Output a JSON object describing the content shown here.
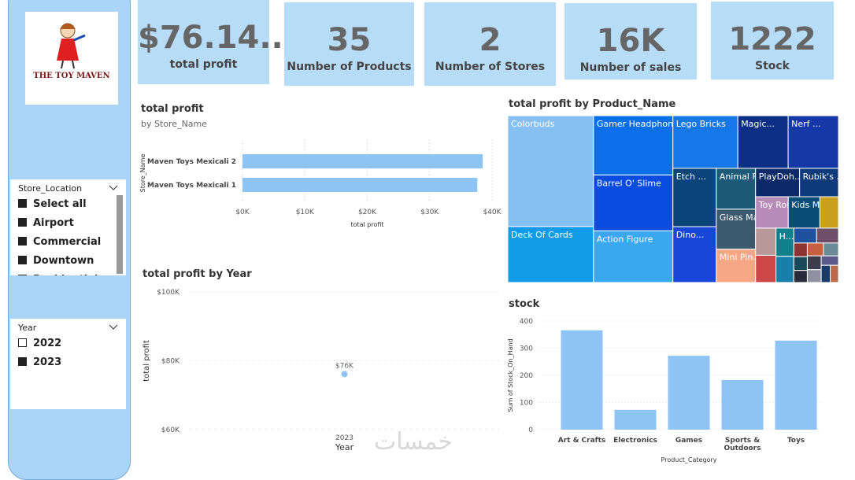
{
  "logo": {
    "text": "THE TOY MAVEN"
  },
  "cards": [
    {
      "value": "$76.14...",
      "label": "total profit"
    },
    {
      "value": "35",
      "label": "Number of Products"
    },
    {
      "value": "2",
      "label": "Number of Stores"
    },
    {
      "value": "16K",
      "label": "Number of sales"
    },
    {
      "value": "1222",
      "label": "Stock"
    }
  ],
  "slicers": [
    {
      "title": "Store_Location",
      "items": [
        {
          "label": "Select all",
          "checked": true
        },
        {
          "label": "Airport",
          "checked": true
        },
        {
          "label": "Commercial",
          "checked": true
        },
        {
          "label": "Downtown",
          "checked": true
        },
        {
          "label": "Residential",
          "checked": true
        }
      ]
    },
    {
      "title": "Year",
      "items": [
        {
          "label": "2022",
          "checked": false
        },
        {
          "label": "2023",
          "checked": true
        }
      ]
    }
  ],
  "watermark": "خمسات",
  "chart_data": [
    {
      "type": "bar",
      "orientation": "horizontal",
      "title": "total profit",
      "subtitle": "by Store_Name",
      "categories": [
        "Maven Toys Mexicali 2",
        "Maven Toys Mexicali 1"
      ],
      "values": [
        38500,
        37640
      ],
      "color": "#8dc4f4",
      "xlim": [
        0,
        40000
      ],
      "xticks": [
        {
          "value": 0,
          "label": "$0K"
        },
        {
          "value": 10000,
          "label": "$10K"
        },
        {
          "value": 20000,
          "label": "$20K"
        },
        {
          "value": 30000,
          "label": "$30K"
        },
        {
          "value": 40000,
          "label": "$40K"
        }
      ],
      "xlabel": "total profit",
      "ylabel": "Store_Name",
      "grid": true
    },
    {
      "type": "treemap",
      "title": "total profit by Product_Name",
      "categories": [
        "Colorbuds",
        "Deck Of Cards",
        "Gamer Headphones",
        "Barrel O' Slime",
        "Action Figure",
        "Lego Bricks",
        "Magic...",
        "Nerf ...",
        "Etch ...",
        "Dino...",
        "Animal F...",
        "Glass Ma...",
        "Mini Pin...",
        "PlayDoh...",
        "Rubik's ...",
        "Toy Robot",
        "Kids Ma...",
        null,
        null,
        null,
        "H...",
        null,
        null,
        null,
        null,
        null,
        null,
        null,
        null,
        null,
        null,
        null,
        null,
        null
      ],
      "values": [
        12840,
        6480,
        6360,
        6000,
        5540,
        4620,
        3580,
        3580,
        3420,
        3270,
        2170,
        2120,
        1770,
        1690,
        1490,
        1390,
        1340,
        790,
        750,
        750,
        680,
        630,
        460,
        440,
        250,
        250,
        220,
        280,
        260,
        260,
        240,
        220,
        210,
        190
      ],
      "colors": [
        "#86bff2",
        "#119be9",
        "#0a6fe8",
        "#0a4be0",
        "#3aa8f0",
        "#1577e8",
        "#0b2f84",
        "#1438a8",
        "#0a4478",
        "#1846d8",
        "#1c5a78",
        "#3c5a6e",
        "#f4a685",
        "#0c2a68",
        "#0c3a7a",
        "#b88cb8",
        "#0a4e78",
        "#c9a020",
        "#b89898",
        "#cc4848",
        "#10808c",
        "#1a7fa8",
        "#2050a0",
        "#6e4e68",
        "#8a3434",
        "#1a4a5a",
        "#2a2a3a",
        "#c86040",
        "#6a8a9a",
        "#3c3c4a",
        "#9090a0",
        "#5a5a8a",
        "#1a3a6a",
        "#ba6a4a"
      ]
    },
    {
      "type": "line",
      "title": "total profit by Year",
      "categories": [
        "2023"
      ],
      "values": [
        76140
      ],
      "value_labels": [
        "$76K"
      ],
      "color": "#8dc4f4",
      "ylim": [
        60000,
        100000
      ],
      "yticks": [
        {
          "value": 60000,
          "label": "$60K"
        },
        {
          "value": 80000,
          "label": "$80K"
        },
        {
          "value": 100000,
          "label": "$100K"
        }
      ],
      "xlabel": "Year",
      "ylabel": "total profit",
      "grid": true
    },
    {
      "type": "bar",
      "orientation": "vertical",
      "title": "stock",
      "categories": [
        "Art & Crafts",
        "Electronics",
        "Games",
        "Sports & Outdoors",
        "Toys"
      ],
      "values": [
        366,
        73,
        272,
        183,
        328
      ],
      "color": "#8dc4f4",
      "ylim": [
        0,
        400
      ],
      "yticks": [
        0,
        100,
        200,
        300,
        400
      ],
      "xlabel": "Product_Category",
      "ylabel": "Sum of Stock_On_Hand",
      "grid": true
    }
  ]
}
